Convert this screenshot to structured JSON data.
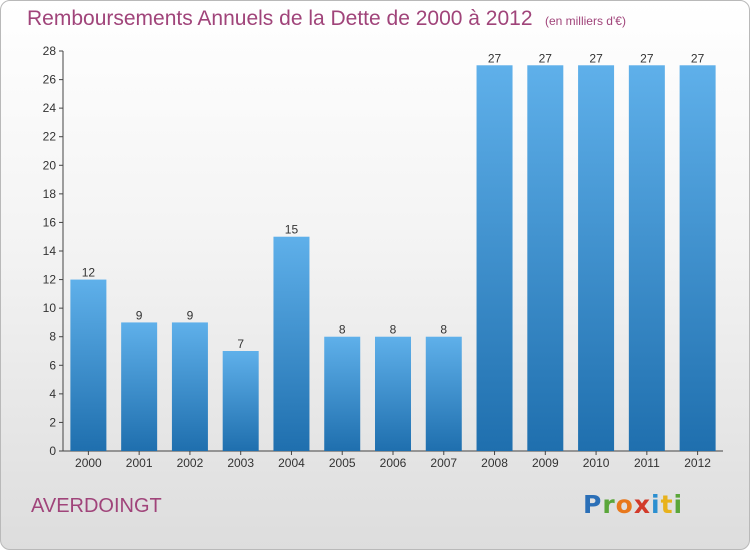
{
  "header": {
    "title": "Remboursements Annuels de la Dette de 2000 à 2012",
    "unit": "(en milliers d'€)"
  },
  "footer": {
    "commune": "AVERDOINGT",
    "logo": "Proxiti"
  },
  "colors": {
    "bar_light": "#5fb0ea",
    "bar_dark": "#1f6fae",
    "text_accent": "#a0447a"
  },
  "chart_data": {
    "type": "bar",
    "title": "Remboursements Annuels de la Dette de 2000 à 2012",
    "subtitle": "(en milliers d'€)",
    "xlabel": "",
    "ylabel": "",
    "categories": [
      "2000",
      "2001",
      "2002",
      "2003",
      "2004",
      "2005",
      "2006",
      "2007",
      "2008",
      "2009",
      "2010",
      "2011",
      "2012"
    ],
    "values": [
      12,
      9,
      9,
      7,
      15,
      8,
      8,
      8,
      27,
      27,
      27,
      27,
      27
    ],
    "ylim": [
      0,
      28
    ],
    "yticks": [
      0,
      2,
      4,
      6,
      8,
      10,
      12,
      14,
      16,
      18,
      20,
      22,
      24,
      26,
      28
    ],
    "grid": false,
    "legend": "none"
  }
}
